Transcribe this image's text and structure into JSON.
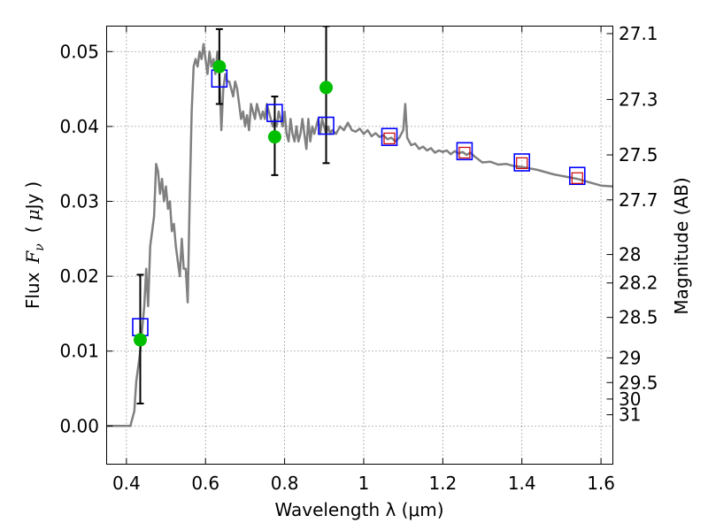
{
  "chart_data": {
    "type": "line",
    "title": "",
    "xlabel": "Wavelength  λ (μm)",
    "ylabel": "Flux  F_ν  ( μJy )",
    "ylabel_parts": {
      "flux": "Flux",
      "fnu_symbol": "F",
      "fnu_sub": "ν",
      "unit_open": "(",
      "unit_mu": "μ",
      "unit_rest": "Jy",
      "unit_close": ")"
    },
    "ylabel_right": "Magnitude (AB)",
    "xlim": [
      0.35,
      1.63
    ],
    "ylim": [
      -0.0051,
      0.0534
    ],
    "grid": true,
    "x_ticks": [
      0.4,
      0.6,
      0.8,
      1.0,
      1.2,
      1.4,
      1.6
    ],
    "x_tick_labels": [
      "0.4",
      "0.6",
      "0.8",
      "1",
      "1.2",
      "1.4",
      "1.6"
    ],
    "y_ticks": [
      0.0,
      0.01,
      0.02,
      0.03,
      0.04,
      0.05
    ],
    "y_tick_labels": [
      "0.00",
      "0.01",
      "0.02",
      "0.03",
      "0.04",
      "0.05"
    ],
    "y_right_ticks": [
      {
        "label": "27.1",
        "flux": 0.0524
      },
      {
        "label": "27.3",
        "flux": 0.0436
      },
      {
        "label": "27.5",
        "flux": 0.0362
      },
      {
        "label": "27.7",
        "flux": 0.0302
      },
      {
        "label": "28",
        "flux": 0.0229
      },
      {
        "label": "28.2",
        "flux": 0.0191
      },
      {
        "label": "28.5",
        "flux": 0.0145
      },
      {
        "label": "29",
        "flux": 0.0091
      },
      {
        "label": "29.5",
        "flux": 0.0058
      },
      {
        "label": "30",
        "flux": 0.0036
      },
      {
        "label": "31",
        "flux": 0.0015
      }
    ],
    "series": [
      {
        "kind": "model-spectrum",
        "color": "#808080",
        "points": [
          [
            0.35,
            0.0
          ],
          [
            0.4,
            0.0
          ],
          [
            0.41,
            0.0
          ],
          [
            0.42,
            0.002
          ],
          [
            0.425,
            0.006
          ],
          [
            0.43,
            0.008
          ],
          [
            0.435,
            0.01
          ],
          [
            0.44,
            0.013
          ],
          [
            0.445,
            0.016
          ],
          [
            0.45,
            0.021
          ],
          [
            0.455,
            0.016
          ],
          [
            0.46,
            0.024
          ],
          [
            0.465,
            0.026
          ],
          [
            0.47,
            0.028
          ],
          [
            0.475,
            0.035
          ],
          [
            0.48,
            0.034
          ],
          [
            0.485,
            0.031
          ],
          [
            0.49,
            0.033
          ],
          [
            0.495,
            0.03
          ],
          [
            0.5,
            0.032
          ],
          [
            0.505,
            0.029
          ],
          [
            0.51,
            0.03
          ],
          [
            0.515,
            0.026
          ],
          [
            0.52,
            0.027
          ],
          [
            0.525,
            0.024
          ],
          [
            0.53,
            0.022
          ],
          [
            0.535,
            0.02
          ],
          [
            0.54,
            0.025
          ],
          [
            0.545,
            0.021
          ],
          [
            0.55,
            0.021
          ],
          [
            0.555,
            0.0165
          ],
          [
            0.56,
            0.03
          ],
          [
            0.565,
            0.042
          ],
          [
            0.57,
            0.048
          ],
          [
            0.575,
            0.049
          ],
          [
            0.58,
            0.048
          ],
          [
            0.585,
            0.05
          ],
          [
            0.59,
            0.049
          ],
          [
            0.595,
            0.051
          ],
          [
            0.6,
            0.049
          ],
          [
            0.605,
            0.047
          ],
          [
            0.61,
            0.05
          ],
          [
            0.615,
            0.048
          ],
          [
            0.62,
            0.049
          ],
          [
            0.625,
            0.047
          ],
          [
            0.63,
            0.05
          ],
          [
            0.635,
            0.047
          ],
          [
            0.64,
            0.0395
          ],
          [
            0.645,
            0.045
          ],
          [
            0.65,
            0.047
          ],
          [
            0.655,
            0.046
          ],
          [
            0.66,
            0.046
          ],
          [
            0.665,
            0.045
          ],
          [
            0.67,
            0.044
          ],
          [
            0.675,
            0.046
          ],
          [
            0.68,
            0.045
          ],
          [
            0.685,
            0.043
          ],
          [
            0.69,
            0.041
          ],
          [
            0.695,
            0.042
          ],
          [
            0.7,
            0.04
          ],
          [
            0.705,
            0.0415
          ],
          [
            0.71,
            0.0395
          ],
          [
            0.715,
            0.043
          ],
          [
            0.72,
            0.042
          ],
          [
            0.725,
            0.041
          ],
          [
            0.73,
            0.043
          ],
          [
            0.735,
            0.042
          ],
          [
            0.74,
            0.041
          ],
          [
            0.745,
            0.042
          ],
          [
            0.75,
            0.041
          ],
          [
            0.755,
            0.043
          ],
          [
            0.76,
            0.042
          ],
          [
            0.765,
            0.041
          ],
          [
            0.77,
            0.04
          ],
          [
            0.775,
            0.041
          ],
          [
            0.78,
            0.04
          ],
          [
            0.785,
            0.042
          ],
          [
            0.79,
            0.041
          ],
          [
            0.795,
            0.04
          ],
          [
            0.8,
            0.042
          ],
          [
            0.805,
            0.039
          ],
          [
            0.81,
            0.038
          ],
          [
            0.815,
            0.041
          ],
          [
            0.82,
            0.039
          ],
          [
            0.825,
            0.038
          ],
          [
            0.83,
            0.04
          ],
          [
            0.835,
            0.038
          ],
          [
            0.84,
            0.039
          ],
          [
            0.845,
            0.041
          ],
          [
            0.85,
            0.039
          ],
          [
            0.855,
            0.037
          ],
          [
            0.86,
            0.041
          ],
          [
            0.865,
            0.038
          ],
          [
            0.87,
            0.04
          ],
          [
            0.875,
            0.039
          ],
          [
            0.88,
            0.04
          ],
          [
            0.885,
            0.041
          ],
          [
            0.89,
            0.039
          ],
          [
            0.895,
            0.041
          ],
          [
            0.9,
            0.04
          ],
          [
            0.905,
            0.039
          ],
          [
            0.91,
            0.04
          ],
          [
            0.915,
            0.039
          ],
          [
            0.92,
            0.0395
          ],
          [
            0.93,
            0.039
          ],
          [
            0.94,
            0.04
          ],
          [
            0.95,
            0.0395
          ],
          [
            0.96,
            0.0405
          ],
          [
            0.97,
            0.0395
          ],
          [
            0.98,
            0.0393
          ],
          [
            0.99,
            0.0397
          ],
          [
            1.0,
            0.039
          ],
          [
            1.01,
            0.0395
          ],
          [
            1.02,
            0.0387
          ],
          [
            1.03,
            0.0391
          ],
          [
            1.04,
            0.0386
          ],
          [
            1.05,
            0.0388
          ],
          [
            1.06,
            0.0383
          ],
          [
            1.07,
            0.0385
          ],
          [
            1.08,
            0.038
          ],
          [
            1.09,
            0.0385
          ],
          [
            1.1,
            0.0395
          ],
          [
            1.105,
            0.043
          ],
          [
            1.11,
            0.0385
          ],
          [
            1.12,
            0.0375
          ],
          [
            1.13,
            0.0377
          ],
          [
            1.14,
            0.037
          ],
          [
            1.15,
            0.0373
          ],
          [
            1.16,
            0.0368
          ],
          [
            1.17,
            0.0371
          ],
          [
            1.18,
            0.0365
          ],
          [
            1.19,
            0.0368
          ],
          [
            1.2,
            0.0366
          ],
          [
            1.21,
            0.0368
          ],
          [
            1.22,
            0.0363
          ],
          [
            1.23,
            0.0367
          ],
          [
            1.24,
            0.0364
          ],
          [
            1.25,
            0.0366
          ],
          [
            1.26,
            0.0362
          ],
          [
            1.27,
            0.0365
          ],
          [
            1.28,
            0.036
          ],
          [
            1.29,
            0.0356
          ],
          [
            1.3,
            0.0352
          ],
          [
            1.32,
            0.0353
          ],
          [
            1.34,
            0.0349
          ],
          [
            1.36,
            0.035
          ],
          [
            1.38,
            0.0347
          ],
          [
            1.4,
            0.0346
          ],
          [
            1.42,
            0.0344
          ],
          [
            1.44,
            0.0342
          ],
          [
            1.46,
            0.0339
          ],
          [
            1.48,
            0.0336
          ],
          [
            1.5,
            0.0334
          ],
          [
            1.52,
            0.0332
          ],
          [
            1.54,
            0.033
          ],
          [
            1.56,
            0.0327
          ],
          [
            1.58,
            0.0324
          ],
          [
            1.6,
            0.0321
          ],
          [
            1.63,
            0.032
          ]
        ]
      },
      {
        "kind": "observed-photometry",
        "color": "#00bf00",
        "points": [
          {
            "x": 0.435,
            "y": 0.0115,
            "lo": 0.003,
            "hi": 0.0202
          },
          {
            "x": 0.635,
            "y": 0.048,
            "lo": 0.043,
            "hi": 0.053
          },
          {
            "x": 0.775,
            "y": 0.0386,
            "lo": 0.0335,
            "hi": 0.044
          },
          {
            "x": 0.905,
            "y": 0.0452,
            "lo": 0.0351,
            "hi": 0.0534
          }
        ]
      },
      {
        "kind": "model-photometry",
        "color": "#0000ff",
        "points": [
          {
            "x": 0.435,
            "y": 0.0132
          },
          {
            "x": 0.635,
            "y": 0.0464
          },
          {
            "x": 0.775,
            "y": 0.0418
          },
          {
            "x": 0.905,
            "y": 0.0401
          },
          {
            "x": 1.065,
            "y": 0.0386
          },
          {
            "x": 1.255,
            "y": 0.0367
          },
          {
            "x": 1.4,
            "y": 0.0352
          },
          {
            "x": 1.54,
            "y": 0.0334
          }
        ]
      },
      {
        "kind": "observed-nir",
        "color": "#cc0000",
        "points": [
          {
            "x": 1.065,
            "y": 0.0384
          },
          {
            "x": 1.255,
            "y": 0.0365
          },
          {
            "x": 1.4,
            "y": 0.0351
          },
          {
            "x": 1.54,
            "y": 0.0331
          }
        ]
      }
    ]
  }
}
